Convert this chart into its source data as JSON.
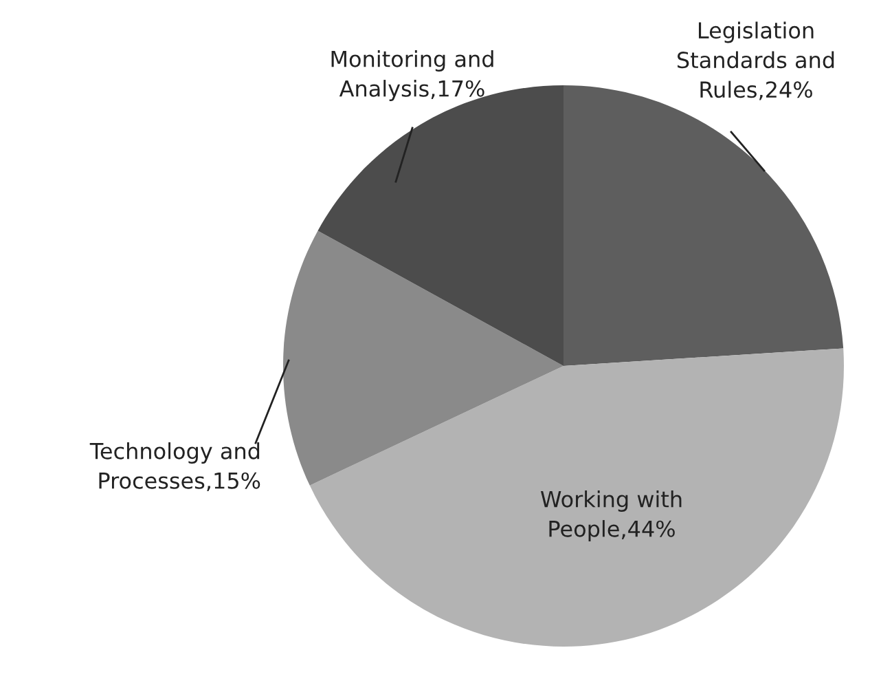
{
  "chart_data": {
    "type": "pie",
    "categories": [
      "Legislation\nStandards and\nRules",
      "Working with\nPeople",
      "Technology and\nProcesses",
      "Monitoring and\nAnalysis"
    ],
    "values": [
      24,
      44,
      15,
      17
    ],
    "value_labels": [
      "24%",
      "44%",
      "15%",
      "17%"
    ],
    "colors": [
      "#5e5e5e",
      "#b3b3b3",
      "#8a8a8a",
      "#4c4c4c"
    ],
    "legend": false
  }
}
